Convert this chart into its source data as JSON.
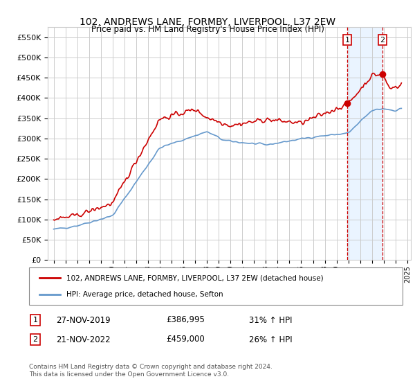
{
  "title": "102, ANDREWS LANE, FORMBY, LIVERPOOL, L37 2EW",
  "subtitle": "Price paid vs. HM Land Registry's House Price Index (HPI)",
  "legend_line1": "102, ANDREWS LANE, FORMBY, LIVERPOOL, L37 2EW (detached house)",
  "legend_line2": "HPI: Average price, detached house, Sefton",
  "footnote": "Contains HM Land Registry data © Crown copyright and database right 2024.\nThis data is licensed under the Open Government Licence v3.0.",
  "sale1_label": "1",
  "sale1_date": "27-NOV-2019",
  "sale1_price": "£386,995",
  "sale1_hpi": "31% ↑ HPI",
  "sale2_label": "2",
  "sale2_date": "21-NOV-2022",
  "sale2_price": "£459,000",
  "sale2_hpi": "26% ↑ HPI",
  "sale1_year": 2019.9,
  "sale1_value": 386995,
  "sale2_year": 2022.9,
  "sale2_value": 459000,
  "ylim_min": 0,
  "ylim_max": 575000,
  "xlim_min": 1994.5,
  "xlim_max": 2025.3,
  "hpi_color": "#6699cc",
  "price_color": "#cc0000",
  "highlight_color": "#ddeeff",
  "vline_color": "#cc0000",
  "grid_color": "#cccccc",
  "background_color": "#ffffff"
}
